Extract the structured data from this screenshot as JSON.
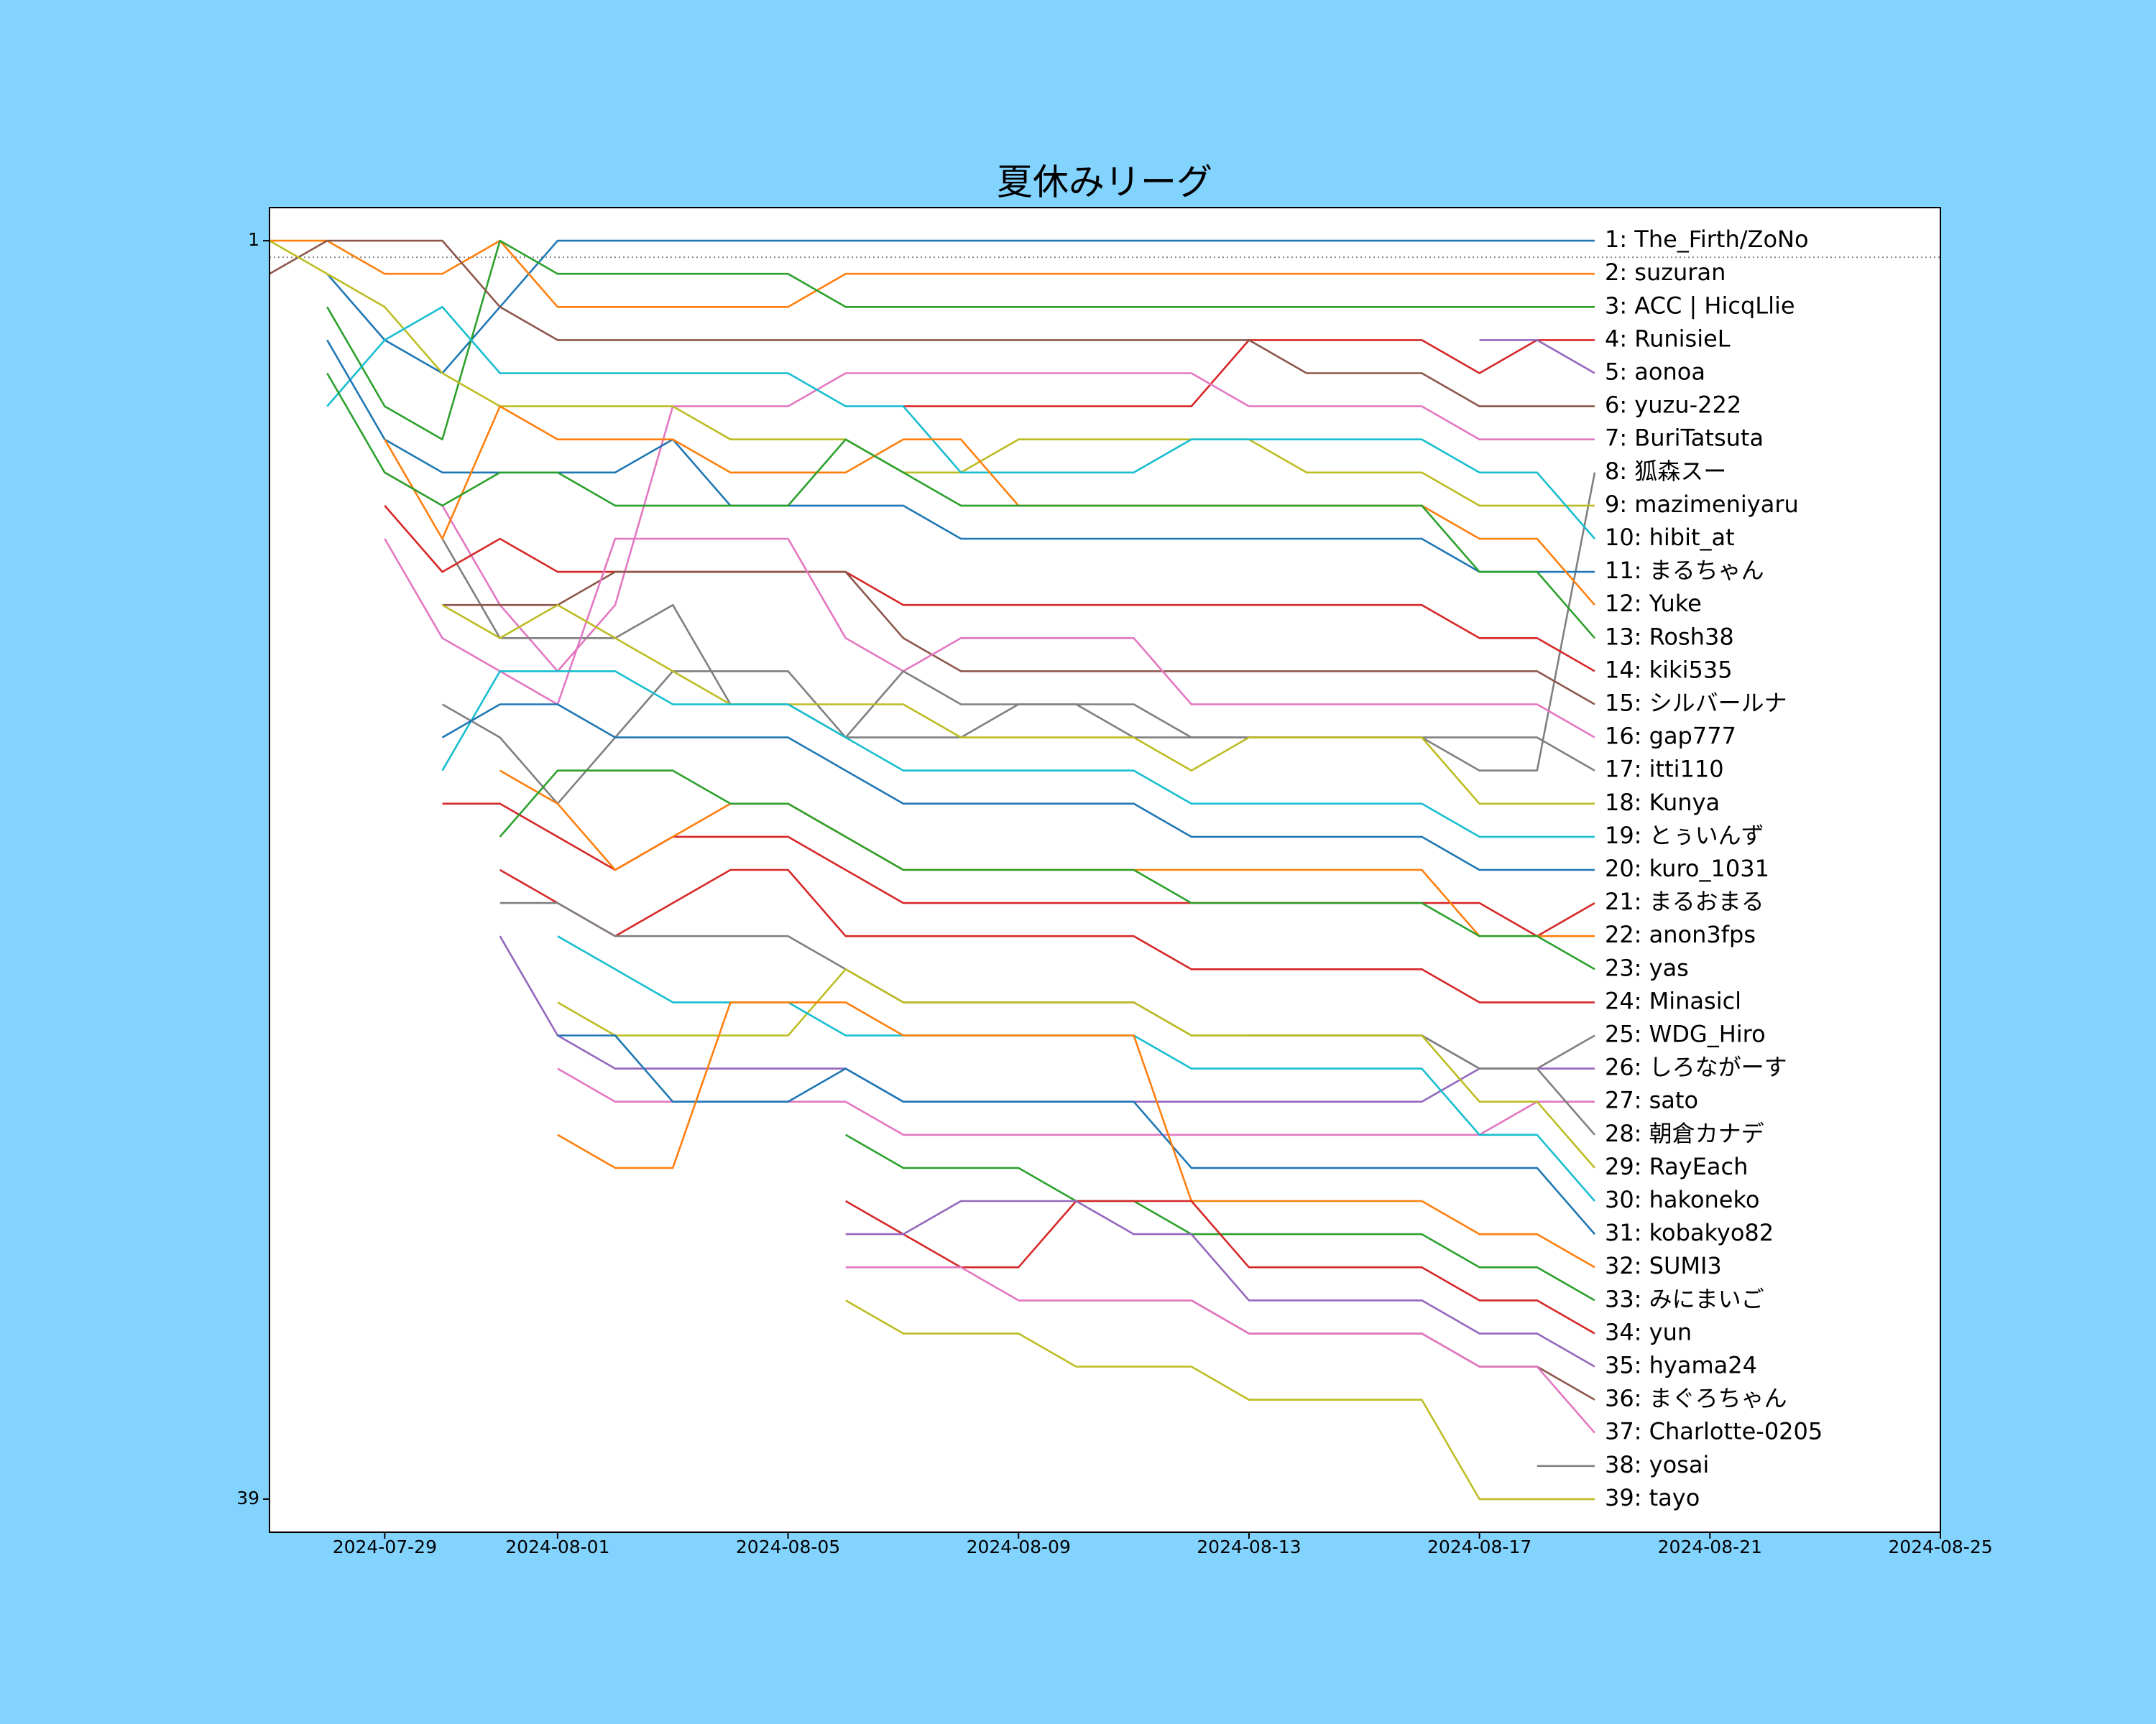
{
  "chart_data": {
    "type": "bump",
    "title": "夏休みリーグ",
    "x": [
      "2024-07-27",
      "2024-07-28",
      "2024-07-29",
      "2024-07-30",
      "2024-07-31",
      "2024-08-01",
      "2024-08-02",
      "2024-08-03",
      "2024-08-04",
      "2024-08-05",
      "2024-08-06",
      "2024-08-07",
      "2024-08-08",
      "2024-08-09",
      "2024-08-10",
      "2024-08-11",
      "2024-08-12",
      "2024-08-13",
      "2024-08-14",
      "2024-08-15",
      "2024-08-16",
      "2024-08-17",
      "2024-08-18",
      "2024-08-19"
    ],
    "xlim": [
      "2024-07-27",
      "2024-08-25"
    ],
    "xticks": [
      "2024-07-29",
      "2024-08-01",
      "2024-08-05",
      "2024-08-09",
      "2024-08-13",
      "2024-08-17",
      "2024-08-21",
      "2024-08-25"
    ],
    "ylim": [
      40,
      0
    ],
    "yticks": [
      1,
      39
    ],
    "hline": 1.5,
    "series": [
      {
        "name": "1: The_Firth/ZoNo",
        "color": "#1f77b4",
        "values": [
          null,
          2,
          4,
          5,
          3,
          1,
          1,
          1,
          1,
          1,
          1,
          1,
          1,
          1,
          1,
          1,
          1,
          1,
          1,
          1,
          1,
          1,
          1,
          1
        ]
      },
      {
        "name": "2: suzuran",
        "color": "#ff7f0e",
        "values": [
          1,
          1,
          2,
          2,
          1,
          3,
          3,
          3,
          3,
          3,
          2,
          2,
          2,
          2,
          2,
          2,
          2,
          2,
          2,
          2,
          2,
          2,
          2,
          2
        ]
      },
      {
        "name": "3: ACC | HicqLlie",
        "color": "#2ca02c",
        "values": [
          null,
          3,
          6,
          7,
          1,
          2,
          2,
          2,
          2,
          2,
          3,
          3,
          3,
          3,
          3,
          3,
          3,
          3,
          3,
          3,
          3,
          3,
          3,
          3
        ]
      },
      {
        "name": "4: RunisieL",
        "color": "#d62728",
        "values": [
          null,
          null,
          null,
          null,
          null,
          null,
          null,
          null,
          null,
          null,
          null,
          6,
          6,
          6,
          6,
          6,
          6,
          4,
          4,
          4,
          4,
          5,
          4,
          4
        ]
      },
      {
        "name": "5: aonoa",
        "color": "#9467bd",
        "values": [
          null,
          null,
          null,
          null,
          null,
          null,
          null,
          null,
          null,
          null,
          null,
          null,
          null,
          null,
          null,
          null,
          null,
          null,
          null,
          null,
          null,
          4,
          4,
          5
        ]
      },
      {
        "name": "6: yuzu-222",
        "color": "#8c564b",
        "values": [
          2,
          1,
          1,
          1,
          3,
          4,
          4,
          4,
          4,
          4,
          4,
          4,
          4,
          4,
          4,
          4,
          4,
          4,
          5,
          5,
          5,
          6,
          6,
          6
        ]
      },
      {
        "name": "7: BuriTatsuta",
        "color": "#e377c2",
        "values": [
          null,
          null,
          8,
          9,
          12,
          14,
          12,
          6,
          6,
          6,
          5,
          5,
          5,
          5,
          5,
          5,
          5,
          6,
          6,
          6,
          6,
          7,
          7,
          7
        ]
      },
      {
        "name": "8: 狐森スー",
        "color": "#7f7f7f",
        "values": [
          null,
          null,
          null,
          10,
          13,
          13,
          13,
          12,
          15,
          15,
          16,
          16,
          16,
          15,
          15,
          16,
          16,
          16,
          16,
          16,
          16,
          17,
          17,
          8
        ]
      },
      {
        "name": "9: mazimeniyaru",
        "color": "#bcbd22",
        "values": [
          1,
          2,
          3,
          5,
          6,
          6,
          6,
          6,
          7,
          7,
          7,
          8,
          8,
          7,
          7,
          7,
          7,
          7,
          8,
          8,
          8,
          9,
          9,
          9
        ]
      },
      {
        "name": "10: hibit_at",
        "color": "#17becf",
        "values": [
          null,
          6,
          4,
          3,
          5,
          5,
          5,
          5,
          5,
          5,
          6,
          6,
          8,
          8,
          8,
          8,
          7,
          7,
          7,
          7,
          7,
          8,
          8,
          10
        ]
      },
      {
        "name": "11: まるちゃん",
        "color": "#1f77b4",
        "values": [
          null,
          4,
          7,
          8,
          8,
          8,
          8,
          7,
          9,
          9,
          9,
          9,
          10,
          10,
          10,
          10,
          10,
          10,
          10,
          10,
          10,
          11,
          11,
          11
        ]
      },
      {
        "name": "12: Yuke",
        "color": "#ff7f0e",
        "values": [
          null,
          null,
          7,
          10,
          6,
          7,
          7,
          7,
          8,
          8,
          8,
          7,
          7,
          9,
          9,
          9,
          9,
          9,
          9,
          9,
          9,
          10,
          10,
          12
        ]
      },
      {
        "name": "13: Rosh38",
        "color": "#2ca02c",
        "values": [
          null,
          5,
          8,
          9,
          8,
          8,
          9,
          9,
          9,
          9,
          7,
          8,
          9,
          9,
          9,
          9,
          9,
          9,
          9,
          9,
          9,
          11,
          11,
          13
        ]
      },
      {
        "name": "14: kiki535",
        "color": "#d62728",
        "values": [
          null,
          null,
          9,
          11,
          10,
          11,
          11,
          11,
          11,
          11,
          11,
          12,
          12,
          12,
          12,
          12,
          12,
          12,
          12,
          12,
          12,
          13,
          13,
          14
        ]
      },
      {
        "name": "15: シルバールナ",
        "color": "#8c564b",
        "values": [
          null,
          null,
          null,
          12,
          12,
          12,
          11,
          11,
          11,
          11,
          11,
          13,
          14,
          14,
          14,
          14,
          14,
          14,
          14,
          14,
          14,
          14,
          14,
          15
        ]
      },
      {
        "name": "16: gap777",
        "color": "#e377c2",
        "values": [
          null,
          null,
          10,
          13,
          14,
          15,
          10,
          10,
          10,
          10,
          13,
          14,
          13,
          13,
          13,
          13,
          15,
          15,
          15,
          15,
          15,
          15,
          15,
          16
        ]
      },
      {
        "name": "17: itti110",
        "color": "#7f7f7f",
        "values": [
          null,
          null,
          null,
          15,
          16,
          18,
          16,
          14,
          14,
          14,
          16,
          14,
          15,
          15,
          15,
          15,
          16,
          16,
          16,
          16,
          16,
          16,
          16,
          17
        ]
      },
      {
        "name": "18: Kunya",
        "color": "#bcbd22",
        "values": [
          null,
          null,
          null,
          12,
          13,
          12,
          13,
          14,
          15,
          15,
          15,
          15,
          16,
          16,
          16,
          16,
          17,
          16,
          16,
          16,
          16,
          18,
          18,
          18
        ]
      },
      {
        "name": "19: とぅいんず",
        "color": "#17becf",
        "values": [
          null,
          null,
          null,
          17,
          14,
          14,
          14,
          15,
          15,
          15,
          16,
          17,
          17,
          17,
          17,
          17,
          18,
          18,
          18,
          18,
          18,
          19,
          19,
          19
        ]
      },
      {
        "name": "20: kuro_1031",
        "color": "#1f77b4",
        "values": [
          null,
          null,
          null,
          16,
          15,
          15,
          16,
          16,
          16,
          16,
          17,
          18,
          18,
          18,
          18,
          18,
          19,
          19,
          19,
          19,
          19,
          20,
          20,
          20
        ]
      },
      {
        "name": "21: まるおまる",
        "color": "#d62728",
        "values": [
          null,
          null,
          null,
          18,
          18,
          19,
          20,
          19,
          19,
          19,
          20,
          21,
          21,
          21,
          21,
          21,
          21,
          21,
          21,
          21,
          21,
          21,
          22,
          21
        ]
      },
      {
        "name": "22: anon3fps",
        "color": "#ff7f0e",
        "values": [
          null,
          null,
          null,
          null,
          17,
          18,
          20,
          19,
          18,
          18,
          19,
          20,
          20,
          20,
          20,
          20,
          20,
          20,
          20,
          20,
          20,
          22,
          22,
          22
        ]
      },
      {
        "name": "23: yas",
        "color": "#2ca02c",
        "values": [
          null,
          null,
          null,
          null,
          19,
          17,
          17,
          17,
          18,
          18,
          19,
          20,
          20,
          20,
          20,
          20,
          21,
          21,
          21,
          21,
          21,
          22,
          22,
          23
        ]
      },
      {
        "name": "24: Minasicl",
        "color": "#d62728",
        "values": [
          null,
          null,
          null,
          null,
          20,
          21,
          22,
          21,
          20,
          20,
          22,
          22,
          22,
          22,
          22,
          22,
          23,
          23,
          23,
          23,
          23,
          24,
          24,
          24
        ]
      },
      {
        "name": "25: WDG_Hiro",
        "color": "#7f7f7f",
        "values": [
          null,
          null,
          null,
          null,
          21,
          21,
          22,
          22,
          22,
          22,
          23,
          24,
          24,
          24,
          24,
          24,
          25,
          25,
          25,
          25,
          25,
          26,
          26,
          25
        ]
      },
      {
        "name": "26: しろながーす",
        "color": "#9467bd",
        "values": [
          null,
          null,
          null,
          null,
          22,
          25,
          26,
          26,
          26,
          26,
          26,
          27,
          27,
          27,
          27,
          27,
          27,
          27,
          27,
          27,
          27,
          26,
          26,
          26
        ]
      },
      {
        "name": "27: sato",
        "color": "#e377c2",
        "values": [
          null,
          null,
          null,
          null,
          null,
          26,
          27,
          27,
          27,
          27,
          27,
          28,
          28,
          28,
          28,
          28,
          28,
          28,
          28,
          28,
          28,
          28,
          27,
          27
        ]
      },
      {
        "name": "28: 朝倉カナデ",
        "color": "#7f7f7f",
        "values": [
          null,
          null,
          null,
          null,
          null,
          null,
          null,
          null,
          null,
          null,
          null,
          null,
          null,
          null,
          null,
          null,
          null,
          25,
          25,
          25,
          25,
          26,
          26,
          28
        ]
      },
      {
        "name": "29: RayEach",
        "color": "#bcbd22",
        "values": [
          null,
          null,
          null,
          null,
          null,
          24,
          25,
          25,
          25,
          25,
          23,
          24,
          24,
          24,
          24,
          24,
          25,
          25,
          25,
          25,
          25,
          27,
          27,
          29
        ]
      },
      {
        "name": "30: hakoneko",
        "color": "#17becf",
        "values": [
          null,
          null,
          null,
          null,
          null,
          22,
          23,
          24,
          24,
          24,
          25,
          25,
          25,
          25,
          25,
          25,
          26,
          26,
          26,
          26,
          26,
          28,
          28,
          30
        ]
      },
      {
        "name": "31: kobakyo82",
        "color": "#1f77b4",
        "values": [
          null,
          null,
          null,
          null,
          null,
          25,
          25,
          27,
          27,
          27,
          26,
          27,
          27,
          27,
          27,
          27,
          29,
          29,
          29,
          29,
          29,
          29,
          29,
          31
        ]
      },
      {
        "name": "32: SUMI3",
        "color": "#ff7f0e",
        "values": [
          null,
          null,
          null,
          null,
          null,
          28,
          29,
          29,
          24,
          24,
          24,
          25,
          25,
          25,
          25,
          25,
          30,
          30,
          30,
          30,
          30,
          31,
          31,
          32
        ]
      },
      {
        "name": "33: みにまいご",
        "color": "#2ca02c",
        "values": [
          null,
          null,
          null,
          null,
          null,
          null,
          null,
          null,
          null,
          null,
          28,
          29,
          29,
          29,
          30,
          30,
          31,
          31,
          31,
          31,
          31,
          32,
          32,
          33
        ]
      },
      {
        "name": "34: yun",
        "color": "#d62728",
        "values": [
          null,
          null,
          null,
          null,
          null,
          null,
          null,
          null,
          null,
          null,
          30,
          31,
          32,
          32,
          30,
          30,
          30,
          32,
          32,
          32,
          32,
          33,
          33,
          34
        ]
      },
      {
        "name": "35: hyama24",
        "color": "#9467bd",
        "values": [
          null,
          null,
          null,
          null,
          null,
          null,
          null,
          null,
          null,
          null,
          31,
          31,
          30,
          30,
          30,
          31,
          31,
          33,
          33,
          33,
          33,
          34,
          34,
          35
        ]
      },
      {
        "name": "36: まぐろちゃん",
        "color": "#8c564b",
        "values": [
          null,
          null,
          null,
          null,
          null,
          null,
          null,
          null,
          null,
          null,
          null,
          null,
          null,
          33,
          33,
          33,
          33,
          34,
          34,
          34,
          34,
          35,
          35,
          36
        ]
      },
      {
        "name": "37: Charlotte-0205",
        "color": "#e377c2",
        "values": [
          null,
          null,
          null,
          null,
          null,
          null,
          null,
          null,
          null,
          null,
          32,
          32,
          32,
          33,
          33,
          33,
          33,
          34,
          34,
          34,
          34,
          35,
          35,
          37
        ]
      },
      {
        "name": "38: yosai",
        "color": "#7f7f7f",
        "values": [
          null,
          null,
          null,
          null,
          null,
          null,
          null,
          null,
          null,
          null,
          null,
          null,
          null,
          null,
          null,
          null,
          null,
          null,
          null,
          null,
          null,
          null,
          38,
          38
        ]
      },
      {
        "name": "39: tayo",
        "color": "#bcbd22",
        "values": [
          null,
          null,
          null,
          null,
          null,
          null,
          null,
          null,
          null,
          null,
          33,
          34,
          34,
          34,
          35,
          35,
          35,
          36,
          36,
          36,
          36,
          39,
          39,
          39
        ]
      }
    ]
  }
}
